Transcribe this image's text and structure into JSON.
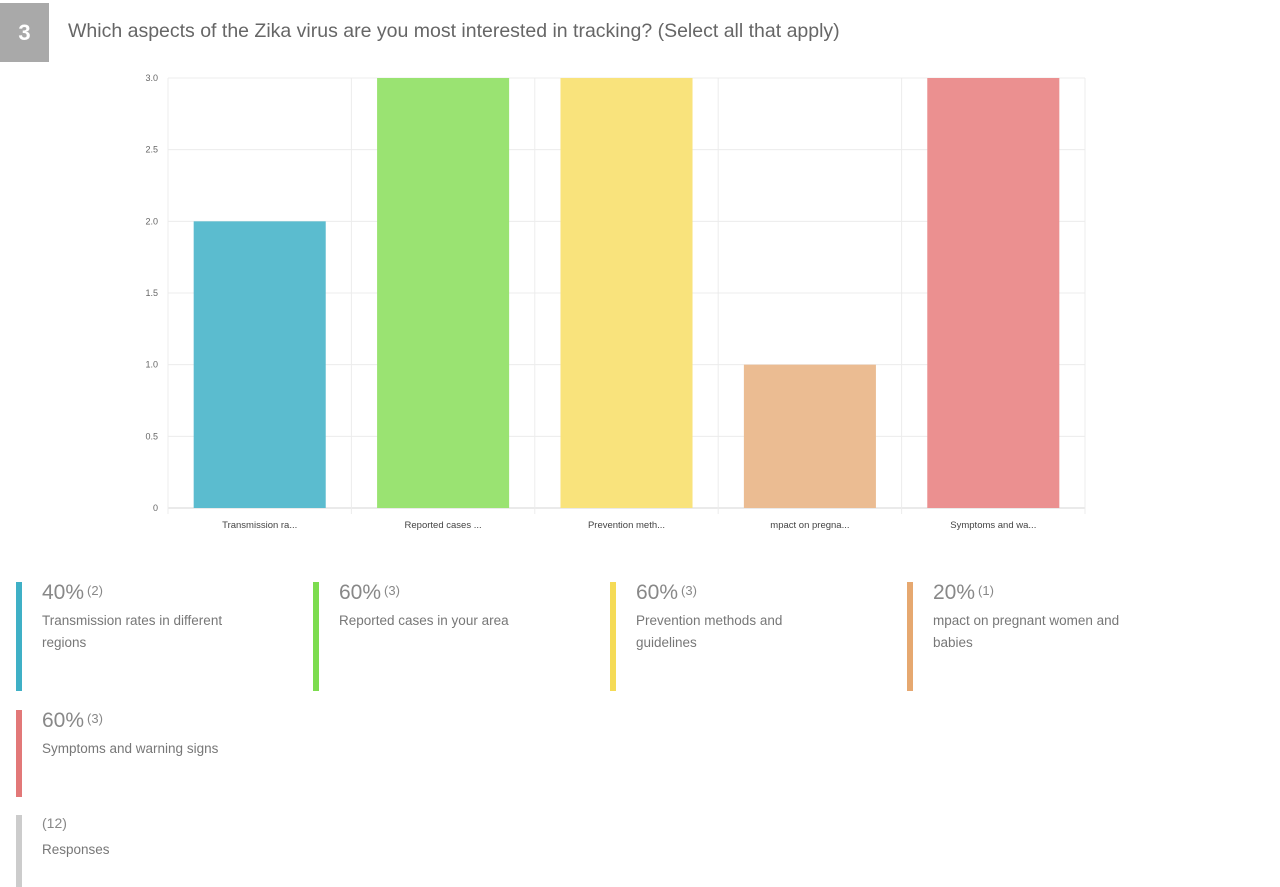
{
  "question": {
    "number": "3",
    "title": "Which aspects of the Zika virus are you most interested in tracking? (Select all that apply)"
  },
  "chart_data": {
    "type": "bar",
    "categories": [
      "Transmission ra...",
      "Reported cases ...",
      "Prevention meth...",
      "mpact on pregna...",
      "Symptoms and wa..."
    ],
    "values": [
      2,
      3,
      3,
      1,
      3
    ],
    "ylim": [
      0,
      3
    ],
    "yticks": [
      "0",
      "0.5",
      "1.0",
      "1.5",
      "2.0",
      "2.5",
      "3.0"
    ],
    "grid": true,
    "colors": [
      "#5bbccf",
      "#9ae372",
      "#f9e37c",
      "#ebbc92",
      "#eb9090"
    ]
  },
  "legend": [
    {
      "percent": "40%",
      "count": "(2)",
      "label": "Transmission rates in different regions",
      "color": "#3fb0c6"
    },
    {
      "percent": "60%",
      "count": "(3)",
      "label": "Reported cases in your area",
      "color": "#7cdc4e"
    },
    {
      "percent": "60%",
      "count": "(3)",
      "label": "Prevention methods and guidelines",
      "color": "#f5db56"
    },
    {
      "percent": "20%",
      "count": "(1)",
      "label": "mpact on pregnant women and babies",
      "color": "#e6a870"
    },
    {
      "percent": "60%",
      "count": "(3)",
      "label": "Symptoms and warning signs",
      "color": "#e27878"
    }
  ],
  "responses": {
    "count": "(12)",
    "label": "Responses",
    "color": "#cccccc"
  }
}
